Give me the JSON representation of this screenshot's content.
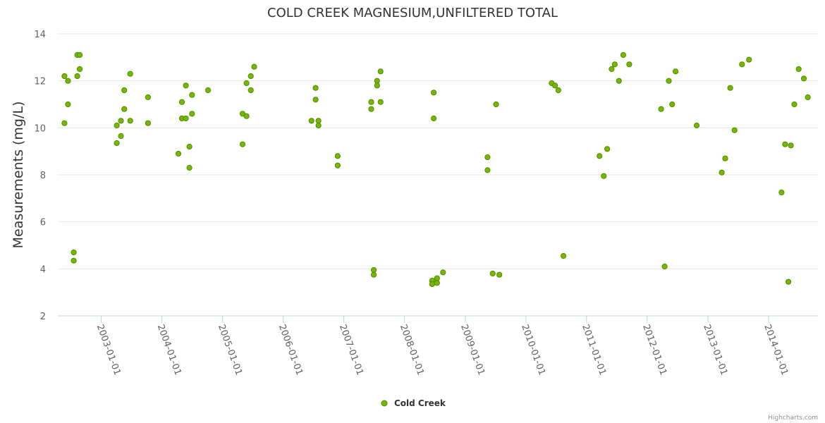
{
  "chart_data": {
    "type": "scatter",
    "title": "COLD CREEK MAGNESIUM,UNFILTERED TOTAL",
    "ylabel": "Measurements (mg/L)",
    "xlabel": "",
    "ylim": [
      2,
      14
    ],
    "yticks": [
      "2",
      "4",
      "6",
      "8",
      "10",
      "12",
      "14"
    ],
    "xlim": [
      "2002-04-15",
      "2014-10-25"
    ],
    "xticks": [
      "2003-01-01",
      "2004-01-01",
      "2005-01-01",
      "2006-01-01",
      "2007-01-01",
      "2008-01-01",
      "2009-01-01",
      "2010-01-01",
      "2011-01-01",
      "2012-01-01",
      "2013-01-01",
      "2014-01-01"
    ],
    "grid": true,
    "legend_position": "bottom-center",
    "marker_color": "#7cb500",
    "marker_edge_color": "#4a8f00",
    "series": [
      {
        "name": "Cold Creek",
        "points": [
          [
            "2002-05-25",
            12.2
          ],
          [
            "2002-05-25",
            10.2
          ],
          [
            "2002-06-15",
            12.0
          ],
          [
            "2002-06-15",
            11.0
          ],
          [
            "2002-07-20",
            4.7
          ],
          [
            "2002-07-20",
            4.35
          ],
          [
            "2002-08-10",
            13.1
          ],
          [
            "2002-08-10",
            12.2
          ],
          [
            "2002-08-25",
            13.1
          ],
          [
            "2002-08-25",
            12.5
          ],
          [
            "2003-04-05",
            10.1
          ],
          [
            "2003-04-05",
            9.35
          ],
          [
            "2003-04-30",
            9.65
          ],
          [
            "2003-04-30",
            10.3
          ],
          [
            "2003-05-20",
            11.6
          ],
          [
            "2003-05-20",
            10.8
          ],
          [
            "2003-06-25",
            12.3
          ],
          [
            "2003-06-25",
            10.3
          ],
          [
            "2003-10-10",
            11.3
          ],
          [
            "2003-10-10",
            10.2
          ],
          [
            "2004-04-10",
            8.9
          ],
          [
            "2004-05-01",
            11.1
          ],
          [
            "2004-05-01",
            10.4
          ],
          [
            "2004-05-25",
            11.8
          ],
          [
            "2004-05-25",
            10.4
          ],
          [
            "2004-06-15",
            9.2
          ],
          [
            "2004-06-15",
            8.3
          ],
          [
            "2004-07-01",
            11.4
          ],
          [
            "2004-07-01",
            10.6
          ],
          [
            "2004-10-05",
            11.6
          ],
          [
            "2005-05-01",
            10.6
          ],
          [
            "2005-05-01",
            9.3
          ],
          [
            "2005-05-25",
            11.9
          ],
          [
            "2005-05-25",
            10.5
          ],
          [
            "2005-06-20",
            12.2
          ],
          [
            "2005-06-20",
            11.6
          ],
          [
            "2005-07-10",
            12.6
          ],
          [
            "2006-06-20",
            10.3
          ],
          [
            "2006-07-15",
            11.7
          ],
          [
            "2006-07-15",
            11.2
          ],
          [
            "2006-08-01",
            10.3
          ],
          [
            "2006-08-01",
            10.1
          ],
          [
            "2006-11-25",
            8.8
          ],
          [
            "2006-11-25",
            8.4
          ],
          [
            "2007-06-15",
            11.1
          ],
          [
            "2007-06-15",
            10.8
          ],
          [
            "2007-06-30",
            3.95
          ],
          [
            "2007-06-30",
            3.75
          ],
          [
            "2007-07-20",
            12.0
          ],
          [
            "2007-07-20",
            11.8
          ],
          [
            "2007-08-10",
            12.4
          ],
          [
            "2007-08-10",
            11.1
          ],
          [
            "2008-06-15",
            3.5
          ],
          [
            "2008-06-15",
            3.35
          ],
          [
            "2008-06-25",
            11.5
          ],
          [
            "2008-06-25",
            10.4
          ],
          [
            "2008-07-15",
            3.6
          ],
          [
            "2008-07-15",
            3.4
          ],
          [
            "2008-08-20",
            3.85
          ],
          [
            "2009-05-15",
            8.75
          ],
          [
            "2009-05-15",
            8.2
          ],
          [
            "2009-06-15",
            3.8
          ],
          [
            "2009-07-05",
            11.0
          ],
          [
            "2009-07-25",
            3.75
          ],
          [
            "2010-06-05",
            11.9
          ],
          [
            "2010-06-25",
            11.8
          ],
          [
            "2010-07-15",
            11.6
          ],
          [
            "2010-08-15",
            4.55
          ],
          [
            "2011-03-20",
            8.8
          ],
          [
            "2011-04-15",
            7.95
          ],
          [
            "2011-05-05",
            9.1
          ],
          [
            "2011-06-01",
            12.5
          ],
          [
            "2011-06-20",
            12.7
          ],
          [
            "2011-07-15",
            12.0
          ],
          [
            "2011-08-10",
            13.1
          ],
          [
            "2011-09-15",
            12.7
          ],
          [
            "2012-03-25",
            10.8
          ],
          [
            "2012-04-15",
            4.1
          ],
          [
            "2012-05-10",
            12.0
          ],
          [
            "2012-05-30",
            11.0
          ],
          [
            "2012-06-20",
            12.4
          ],
          [
            "2012-10-25",
            10.1
          ],
          [
            "2013-03-25",
            8.1
          ],
          [
            "2013-04-15",
            8.7
          ],
          [
            "2013-05-15",
            11.7
          ],
          [
            "2013-06-10",
            9.9
          ],
          [
            "2013-07-25",
            12.7
          ],
          [
            "2013-09-05",
            12.9
          ],
          [
            "2014-03-20",
            7.25
          ],
          [
            "2014-04-10",
            9.3
          ],
          [
            "2014-04-30",
            3.45
          ],
          [
            "2014-05-15",
            9.25
          ],
          [
            "2014-06-05",
            11.0
          ],
          [
            "2014-07-01",
            12.5
          ],
          [
            "2014-08-01",
            12.1
          ],
          [
            "2014-08-25",
            11.3
          ]
        ]
      }
    ]
  },
  "credits": "Highcharts.com"
}
